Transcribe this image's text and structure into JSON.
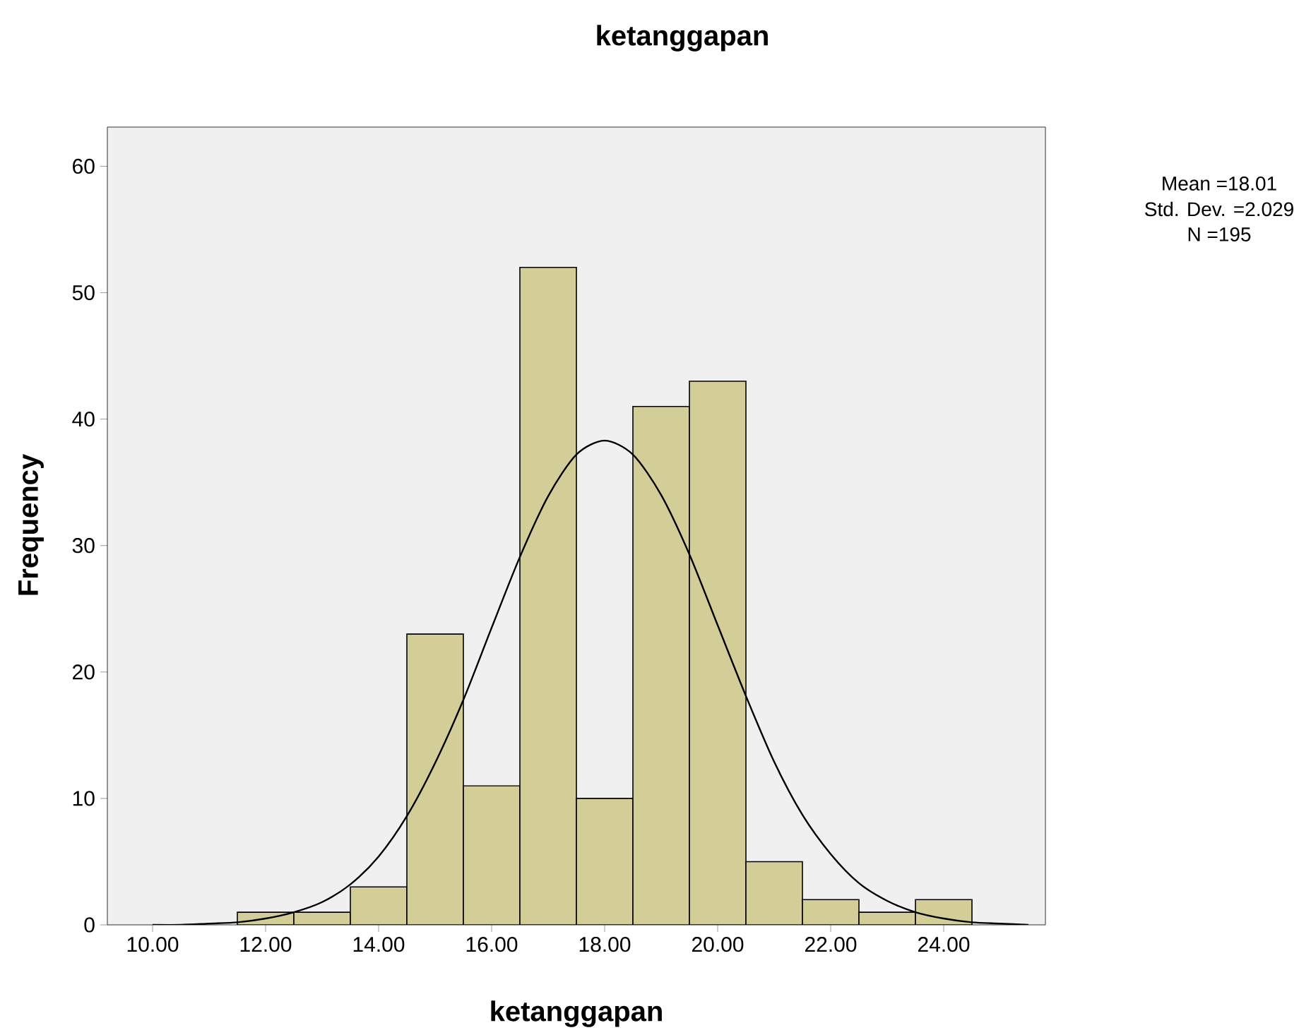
{
  "chart_data": {
    "type": "histogram",
    "title": "ketanggapan",
    "xlabel": "ketanggapan",
    "ylabel": "Frequency",
    "annotations": [
      "Mean =18.01",
      "Std. Dev. =2.029",
      "N =195"
    ],
    "xlim": [
      9.2,
      25.8
    ],
    "ylim": [
      0,
      63.1
    ],
    "xticks": [
      {
        "value": 10,
        "label": "10.00"
      },
      {
        "value": 12,
        "label": "12.00"
      },
      {
        "value": 14,
        "label": "14.00"
      },
      {
        "value": 16,
        "label": "16.00"
      },
      {
        "value": 18,
        "label": "18.00"
      },
      {
        "value": 20,
        "label": "20.00"
      },
      {
        "value": 22,
        "label": "22.00"
      },
      {
        "value": 24,
        "label": "24.00"
      }
    ],
    "yticks": [
      0,
      10,
      20,
      30,
      40,
      50,
      60
    ],
    "grid": false,
    "series": [
      {
        "type": "histogram",
        "color": "#d3ce98",
        "bins": [
          11.5,
          12.5,
          13.5,
          14.5,
          15.5,
          16.5,
          17.5,
          18.5,
          19.5,
          20.5,
          21.5,
          22.5,
          23.5,
          24.5
        ],
        "values": [
          1,
          1,
          3,
          23,
          11,
          52,
          10,
          41,
          43,
          5,
          2,
          1,
          2
        ]
      },
      {
        "type": "line",
        "color": "#000000",
        "marker": "none",
        "line_style": "solid",
        "x": [
          10,
          10.5,
          11,
          11.5,
          12,
          12.5,
          13,
          13.5,
          14,
          14.5,
          15,
          15.5,
          16,
          16.5,
          17,
          17.5,
          18,
          18.5,
          19,
          19.5,
          20,
          20.5,
          21,
          21.5,
          22,
          22.5,
          23,
          23.5,
          24,
          24.5,
          25,
          25.5
        ],
        "values": [
          0.0,
          0.0,
          0.1,
          0.2,
          0.5,
          1.0,
          1.8,
          3.2,
          5.4,
          8.6,
          12.8,
          17.8,
          23.5,
          29.1,
          33.9,
          37.2,
          38.3,
          37.2,
          34.0,
          29.3,
          23.7,
          18.1,
          12.9,
          8.7,
          5.6,
          3.3,
          1.9,
          1.0,
          0.5,
          0.2,
          0.1,
          0.0
        ]
      }
    ]
  }
}
